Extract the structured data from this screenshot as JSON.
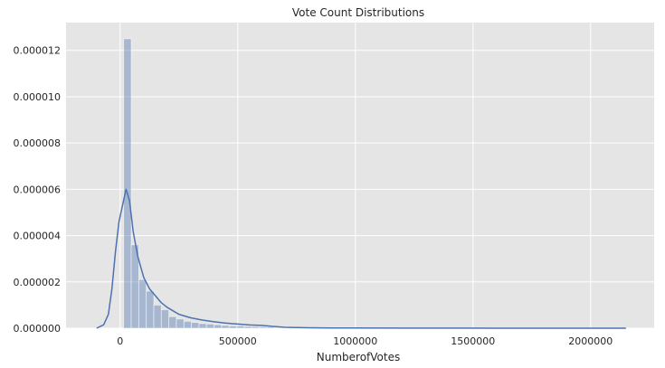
{
  "chart_data": {
    "type": "bar",
    "title": "Vote Count Distributions",
    "xlabel": "NumberofVotes",
    "ylabel": "",
    "xlim": [
      -230000,
      2270000
    ],
    "ylim": [
      0,
      1.32e-05
    ],
    "grid": true,
    "legend": "none",
    "background_color": "#e5e5e5",
    "grid_color": "#ffffff",
    "bar_color": "#4c72b0",
    "bar_opacity": 0.4,
    "line_color": "#4c72b0",
    "x_ticks": [
      0,
      500000,
      1000000,
      1500000,
      2000000
    ],
    "x_tick_labels": [
      "0",
      "500000",
      "1000000",
      "1500000",
      "2000000"
    ],
    "y_ticks": [
      0,
      2e-06,
      4e-06,
      6e-06,
      8e-06,
      1e-05,
      1.2e-05
    ],
    "y_tick_labels": [
      "0.000000",
      "0.000002",
      "0.000004",
      "0.000006",
      "0.000008",
      "0.000010",
      "0.000012"
    ],
    "histogram": {
      "bin_edges": [
        15000,
        47000,
        79000,
        111000,
        143000,
        175000,
        207000,
        239000,
        271000,
        303000,
        335000,
        367000,
        399000,
        431000,
        463000,
        495000,
        527000,
        559000,
        591000,
        623000,
        655000
      ],
      "densities": [
        1.25e-05,
        3.6e-06,
        2.1e-06,
        1.6e-06,
        1e-06,
        8e-07,
        5e-07,
        4e-07,
        3e-07,
        2.5e-07,
        2e-07,
        1.8e-07,
        1.5e-07,
        1.2e-07,
        1e-07,
        1e-07,
        8e-08,
        7e-08,
        6e-08,
        5e-08
      ]
    },
    "series": [
      {
        "type": "line",
        "x": [
          -100000,
          -70000,
          -50000,
          -35000,
          -20000,
          -5000,
          10000,
          25000,
          40000,
          55000,
          75000,
          100000,
          125000,
          150000,
          175000,
          200000,
          225000,
          250000,
          300000,
          350000,
          400000,
          450000,
          500000,
          550000,
          600000,
          650000,
          700000,
          800000,
          900000,
          1000000,
          1200000,
          1400000,
          1600000,
          1800000,
          2000000,
          2150000
        ],
        "values": [
          0.0,
          1.5e-07,
          6e-07,
          1.7e-06,
          3.3e-06,
          4.6e-06,
          5.3e-06,
          6e-06,
          5.5e-06,
          4.2e-06,
          3.1e-06,
          2.2e-06,
          1.7e-06,
          1.4e-06,
          1.1e-06,
          9e-07,
          7.5e-07,
          6e-07,
          4.5e-07,
          3.5e-07,
          2.8e-07,
          2.2e-07,
          1.8e-07,
          1.4e-07,
          1.2e-07,
          8e-08,
          4e-08,
          2e-08,
          1e-08,
          1e-08,
          5e-09,
          3e-09,
          2e-09,
          1e-09,
          1e-09,
          0.0
        ]
      }
    ]
  }
}
